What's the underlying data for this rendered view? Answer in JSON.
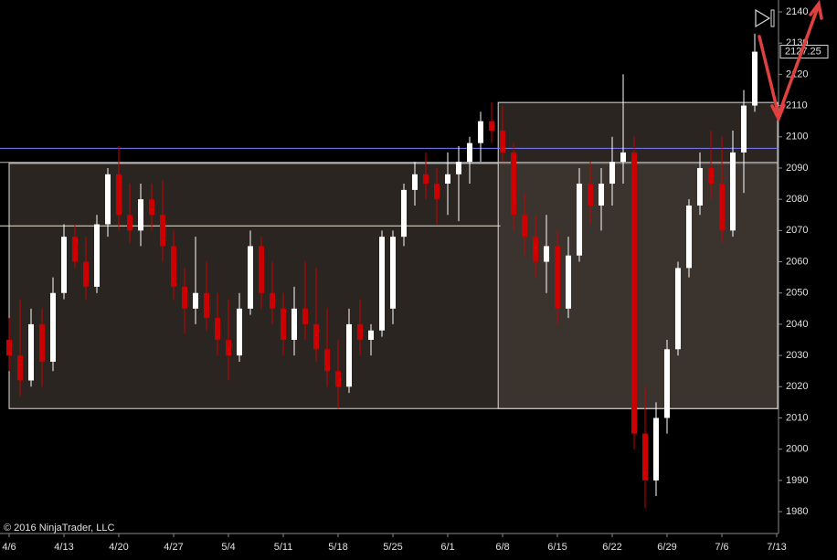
{
  "chart_data": {
    "type": "candlestick",
    "categories": [
      "4/6",
      null,
      null,
      null,
      null,
      "4/13",
      null,
      null,
      null,
      null,
      "4/20",
      null,
      null,
      null,
      null,
      "4/27",
      null,
      null,
      null,
      null,
      "5/4",
      null,
      null,
      null,
      null,
      "5/11",
      null,
      null,
      null,
      null,
      "5/18",
      null,
      null,
      null,
      null,
      "5/25",
      null,
      null,
      null,
      null,
      "6/1",
      null,
      null,
      null,
      null,
      "6/8",
      null,
      null,
      null,
      null,
      "6/15",
      null,
      null,
      null,
      null,
      "6/22",
      null,
      null,
      null,
      null,
      "6/29",
      null,
      null,
      null,
      null,
      "7/6",
      null,
      null,
      null,
      null,
      "7/13"
    ],
    "series": {
      "open": [
        2035,
        2030,
        2022,
        2040,
        2028,
        2050,
        2068,
        2060,
        2052,
        2072,
        2088,
        2075,
        2070,
        2080,
        2075,
        2065,
        2052,
        2045,
        2050,
        2042,
        2035,
        2030,
        2045,
        2065,
        2050,
        2045,
        2035,
        2045,
        2040,
        2032,
        2025,
        2020,
        2040,
        2035,
        2038,
        2045,
        2068,
        2083,
        2088,
        2085,
        2085,
        2088,
        2092,
        2098,
        2105,
        2102,
        2095,
        2075,
        2068,
        2060,
        2065,
        2045,
        2062,
        2085,
        2078,
        2085,
        2092,
        2095,
        2005,
        1990,
        2010,
        2032,
        2058,
        2078,
        2090,
        2085,
        2070,
        2095,
        2110,
        null,
        null
      ],
      "high": [
        2042,
        2048,
        2045,
        2045,
        2055,
        2072,
        2072,
        2068,
        2075,
        2090,
        2097,
        2085,
        2085,
        2085,
        2086,
        2070,
        2058,
        2068,
        2060,
        2050,
        2048,
        2050,
        2070,
        2068,
        2060,
        2050,
        2052,
        2060,
        2058,
        2045,
        2035,
        2045,
        2048,
        2040,
        2070,
        2070,
        2085,
        2092,
        2095,
        2090,
        2095,
        2097,
        2100,
        2108,
        2111,
        2110,
        2098,
        2082,
        2075,
        2075,
        2070,
        2068,
        2090,
        2092,
        2090,
        2100,
        2120,
        2100,
        2020,
        2015,
        2035,
        2060,
        2080,
        2095,
        2102,
        2100,
        2102,
        2115,
        2133,
        null,
        null
      ],
      "low": [
        2025,
        2017,
        2020,
        2020,
        2025,
        2048,
        2058,
        2048,
        2050,
        2068,
        2070,
        2066,
        2065,
        2070,
        2060,
        2048,
        2037,
        2040,
        2038,
        2030,
        2022,
        2028,
        2043,
        2045,
        2040,
        2030,
        2030,
        2035,
        2028,
        2020,
        2013,
        2018,
        2030,
        2030,
        2036,
        2040,
        2065,
        2078,
        2080,
        2072,
        2075,
        2073,
        2085,
        2092,
        2098,
        2092,
        2070,
        2062,
        2055,
        2050,
        2040,
        2042,
        2060,
        2072,
        2070,
        2078,
        2085,
        2000,
        1981,
        1985,
        2005,
        2030,
        2055,
        2075,
        2080,
        2066,
        2068,
        2082,
        2108,
        null,
        null
      ],
      "close": [
        2030,
        2022,
        2040,
        2028,
        2050,
        2068,
        2060,
        2052,
        2072,
        2088,
        2075,
        2070,
        2080,
        2075,
        2065,
        2052,
        2045,
        2050,
        2042,
        2035,
        2030,
        2045,
        2065,
        2050,
        2045,
        2035,
        2045,
        2040,
        2032,
        2025,
        2020,
        2040,
        2035,
        2038,
        2068,
        2068,
        2083,
        2088,
        2085,
        2080,
        2088,
        2092,
        2098,
        2105,
        2102,
        2095,
        2075,
        2068,
        2060,
        2065,
        2045,
        2062,
        2085,
        2078,
        2085,
        2092,
        2095,
        2005,
        1990,
        2010,
        2032,
        2058,
        2078,
        2090,
        2085,
        2070,
        2095,
        2110,
        2127.25,
        null,
        null
      ]
    },
    "up_color": "#ffffff",
    "down_color": "#cc0000",
    "ylim": [
      1973,
      2143.8
    ],
    "yticks": [
      1980,
      1990,
      2000,
      2010,
      2020,
      2030,
      2040,
      2050,
      2060,
      2070,
      2080,
      2090,
      2100,
      2110,
      2120,
      2130,
      2140
    ],
    "last_price": 2127.25,
    "zones": [
      {
        "low": 2013,
        "high": 2091.5,
        "start": 0
      },
      {
        "low": 2013,
        "high": 2111,
        "start": 44.6
      }
    ],
    "lines": [
      {
        "value": 2096.3,
        "color": "#7b7bff"
      },
      {
        "value": 2091.8,
        "color": "#bbbbbb"
      },
      {
        "value": 2071.5,
        "color": "#f0e8c0",
        "end": 44.8
      }
    ],
    "copyright": "© 2016 NinjaTrader, LLC"
  }
}
